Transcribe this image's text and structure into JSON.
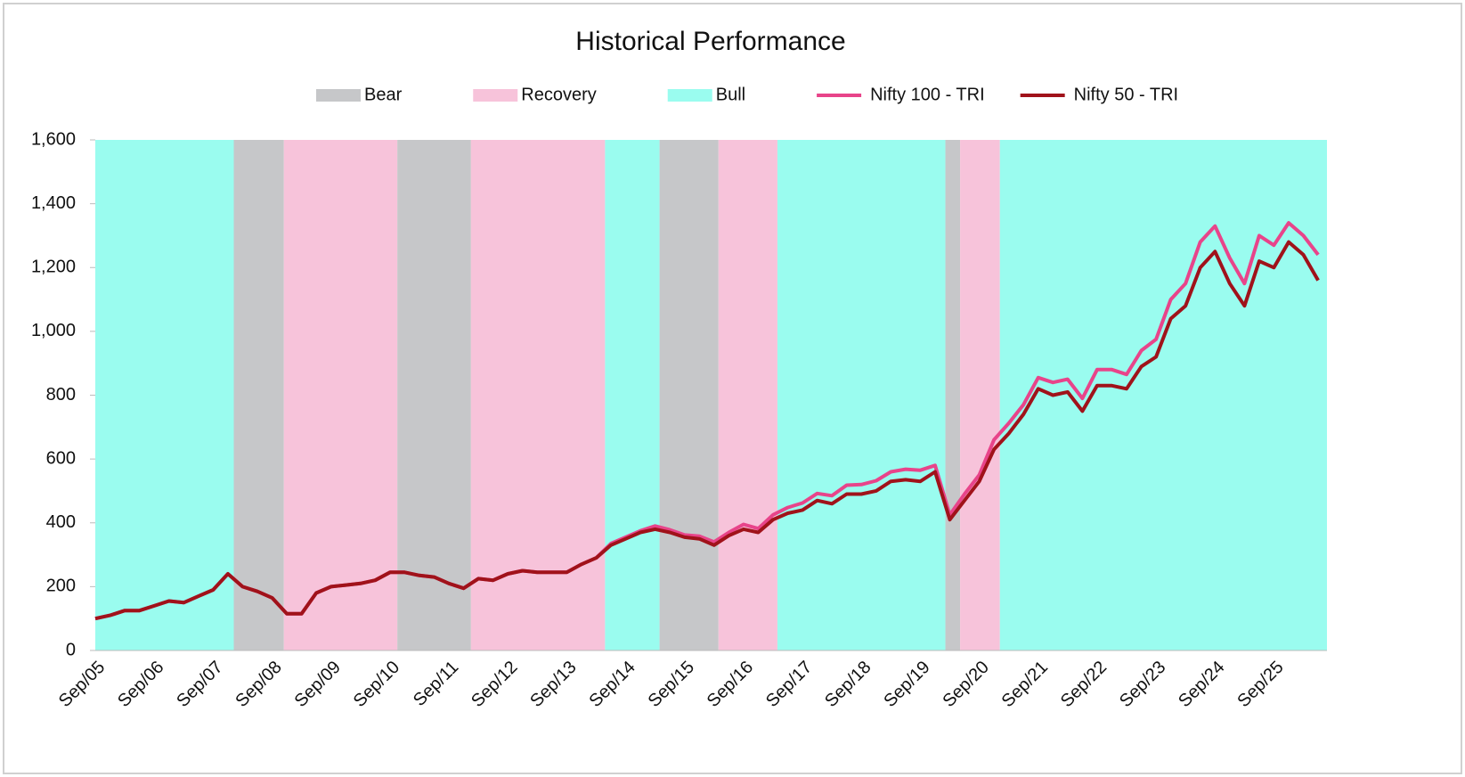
{
  "chart_data": {
    "type": "line",
    "title": "Historical Performance",
    "bands": [
      {
        "name": "Bear",
        "color": "#c6c7c9"
      },
      {
        "name": "Recovery",
        "color": "#f7c3da"
      },
      {
        "name": "Bull",
        "color": "#9afcef"
      }
    ],
    "regimes": [
      {
        "band": 2,
        "start": 0,
        "end": 9.4
      },
      {
        "band": 0,
        "start": 9.4,
        "end": 12.8
      },
      {
        "band": 1,
        "start": 12.8,
        "end": 20.5
      },
      {
        "band": 0,
        "start": 20.5,
        "end": 25.5
      },
      {
        "band": 1,
        "start": 25.5,
        "end": 34.6
      },
      {
        "band": 2,
        "start": 34.6,
        "end": 38.3
      },
      {
        "band": 0,
        "start": 38.3,
        "end": 42.3
      },
      {
        "band": 1,
        "start": 42.3,
        "end": 46.3
      },
      {
        "band": 2,
        "start": 46.3,
        "end": 57.7
      },
      {
        "band": 0,
        "start": 57.7,
        "end": 58.7
      },
      {
        "band": 1,
        "start": 58.7,
        "end": 61.4
      },
      {
        "band": 2,
        "start": 61.4,
        "end": 83.6
      }
    ],
    "categories": [
      "Sep/05",
      null,
      null,
      null,
      "Sep/06",
      null,
      null,
      null,
      "Sep/07",
      null,
      null,
      null,
      "Sep/08",
      null,
      null,
      null,
      "Sep/09",
      null,
      null,
      null,
      "Sep/10",
      null,
      null,
      null,
      "Sep/11",
      null,
      null,
      null,
      "Sep/12",
      null,
      null,
      null,
      "Sep/13",
      null,
      null,
      null,
      "Sep/14",
      null,
      null,
      null,
      "Sep/15",
      null,
      null,
      null,
      "Sep/16",
      null,
      null,
      null,
      "Sep/17",
      null,
      null,
      null,
      "Sep/18",
      null,
      null,
      null,
      "Sep/19",
      null,
      null,
      null,
      "Sep/20",
      null,
      null,
      null,
      "Sep/21",
      null,
      null,
      null,
      "Sep/22",
      null,
      null,
      null,
      "Sep/23",
      null,
      null,
      null,
      "Sep/24",
      null,
      null,
      null,
      "Sep/25",
      null,
      null,
      null
    ],
    "series": [
      {
        "name": "Nifty 100 - TRI",
        "color": "#e8448a",
        "values": [
          100,
          110,
          125,
          125,
          140,
          155,
          150,
          170,
          190,
          240,
          200,
          185,
          165,
          115,
          115,
          180,
          200,
          205,
          210,
          220,
          245,
          245,
          235,
          230,
          210,
          195,
          225,
          220,
          240,
          250,
          245,
          245,
          245,
          270,
          290,
          335,
          355,
          375,
          390,
          378,
          362,
          358,
          340,
          370,
          395,
          382,
          425,
          448,
          462,
          492,
          485,
          518,
          520,
          532,
          560,
          568,
          565,
          580,
          425,
          490,
          550,
          660,
          712,
          770,
          855,
          840,
          850,
          790,
          880,
          880,
          865,
          940,
          975,
          1100,
          1150,
          1280,
          1330,
          1230,
          1150,
          1300,
          1270,
          1340,
          1300,
          1240
        ]
      },
      {
        "name": "Nifty 50 - TRI",
        "color": "#a0121a",
        "values": [
          100,
          110,
          125,
          125,
          140,
          155,
          150,
          170,
          190,
          240,
          200,
          185,
          165,
          115,
          115,
          180,
          200,
          205,
          210,
          220,
          245,
          245,
          235,
          230,
          210,
          195,
          225,
          220,
          240,
          250,
          245,
          245,
          245,
          270,
          290,
          330,
          350,
          370,
          380,
          370,
          355,
          350,
          330,
          360,
          380,
          370,
          410,
          430,
          440,
          470,
          460,
          490,
          490,
          500,
          530,
          535,
          530,
          560,
          410,
          470,
          530,
          630,
          680,
          740,
          820,
          800,
          810,
          750,
          830,
          830,
          820,
          890,
          920,
          1040,
          1080,
          1200,
          1250,
          1150,
          1080,
          1220,
          1200,
          1280,
          1240,
          1160
        ]
      }
    ],
    "xlim": [
      0,
      83.6
    ],
    "ylim": [
      0,
      1600
    ],
    "yticks": [
      0,
      {
        "value": 200,
        "label": "200"
      },
      400,
      600,
      800,
      {
        "value": 1000,
        "label": "1,000"
      },
      {
        "value": 1200,
        "label": "1,200"
      },
      {
        "value": 1400,
        "label": "1,400"
      },
      {
        "value": 1600,
        "label": "1,600"
      }
    ]
  }
}
